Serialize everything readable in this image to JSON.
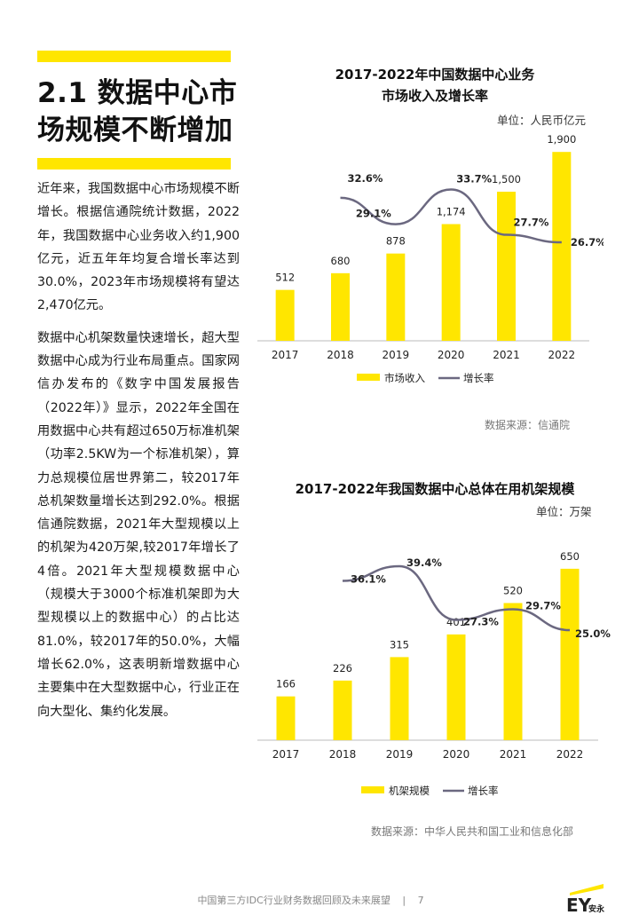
{
  "heading": "2.1 数据中心市场规模不断增加",
  "heading_lines": [
    "2.1 数据中心市",
    "场规模不断增加"
  ],
  "paragraphs": [
    "近年来，我国数据中心市场规模不断增长。根据信通院统计数据，2022年，我国数据中心业务收入约1,900亿元，近五年年均复合增长率达到30.0%，2023年市场规模将有望达2,470亿元。",
    "数据中心机架数量快速增长，超大型数据中心成为行业布局重点。国家网信办发布的《数字中国发展报告（2022年）》显示，2022年全国在用数据中心共有超过650万标准机架（功率2.5KW为一个标准机架），算力总规模位居世界第二，较2017年总机架数量增长达到292.0%。根据信通院数据，2021年大型规模以上的机架为420万架,较2017年增长了4倍。2021年大型规模数据中心（规模大于3000个标准机架即为大型规模以上的数据中心）的占比达81.0%，较2017年的50.0%，大幅增长62.0%，这表明新增数据中心主要集中在大型数据中心，行业正在向大型化、集约化发展。"
  ],
  "chart_data": [
    {
      "type": "bar",
      "title": "2017-2022年中国数据中心业务市场收入及增长率",
      "title_lines": [
        "2017-2022年中国数据中心业务",
        "市场收入及增长率"
      ],
      "unit": "单位：人民币亿元",
      "categories": [
        "2017",
        "2018",
        "2019",
        "2020",
        "2021",
        "2022"
      ],
      "series": [
        {
          "name": "市场收入",
          "values": [
            512,
            680,
            878,
            1174,
            1500,
            1900
          ],
          "labels": [
            "512",
            "680",
            "878",
            "1,174",
            "1,500",
            "1,900"
          ],
          "color": "#ffe600"
        },
        {
          "name": "增长率",
          "values": [
            null,
            32.6,
            29.1,
            33.7,
            27.7,
            26.7
          ],
          "labels": [
            "",
            "32.6%",
            "29.1%",
            "33.7%",
            "27.7%",
            "26.7%"
          ],
          "color": "#6b6880"
        }
      ],
      "bar_max": 2000,
      "rate_range": [
        20,
        40
      ],
      "source": "数据来源：信通院"
    },
    {
      "type": "bar",
      "title": "2017-2022年我国数据中心总体在用机架规模",
      "unit": "单位：万架",
      "categories": [
        "2017",
        "2018",
        "2019",
        "2020",
        "2021",
        "2022"
      ],
      "series": [
        {
          "name": "机架规模",
          "values": [
            166,
            226,
            315,
            401,
            520,
            650
          ],
          "labels": [
            "166",
            "226",
            "315",
            "401",
            "520",
            "650"
          ],
          "color": "#ffe600"
        },
        {
          "name": "增长率",
          "values": [
            null,
            36.1,
            39.4,
            27.3,
            29.7,
            25.0
          ],
          "labels": [
            "",
            "36.1%",
            "39.4%",
            "27.3%",
            "29.7%",
            "25.0%"
          ],
          "color": "#6b6880"
        }
      ],
      "bar_max": 700,
      "rate_range": [
        15,
        45
      ],
      "source": "数据来源：中华人民共和国工业和信息化部"
    }
  ],
  "footer": {
    "text": "中国第三方IDC行业财务数据回顾及未来展望",
    "separator": "|",
    "page": "7"
  },
  "logo": {
    "brand": "EY",
    "sub": "安永",
    "accent": "#ffe600"
  }
}
